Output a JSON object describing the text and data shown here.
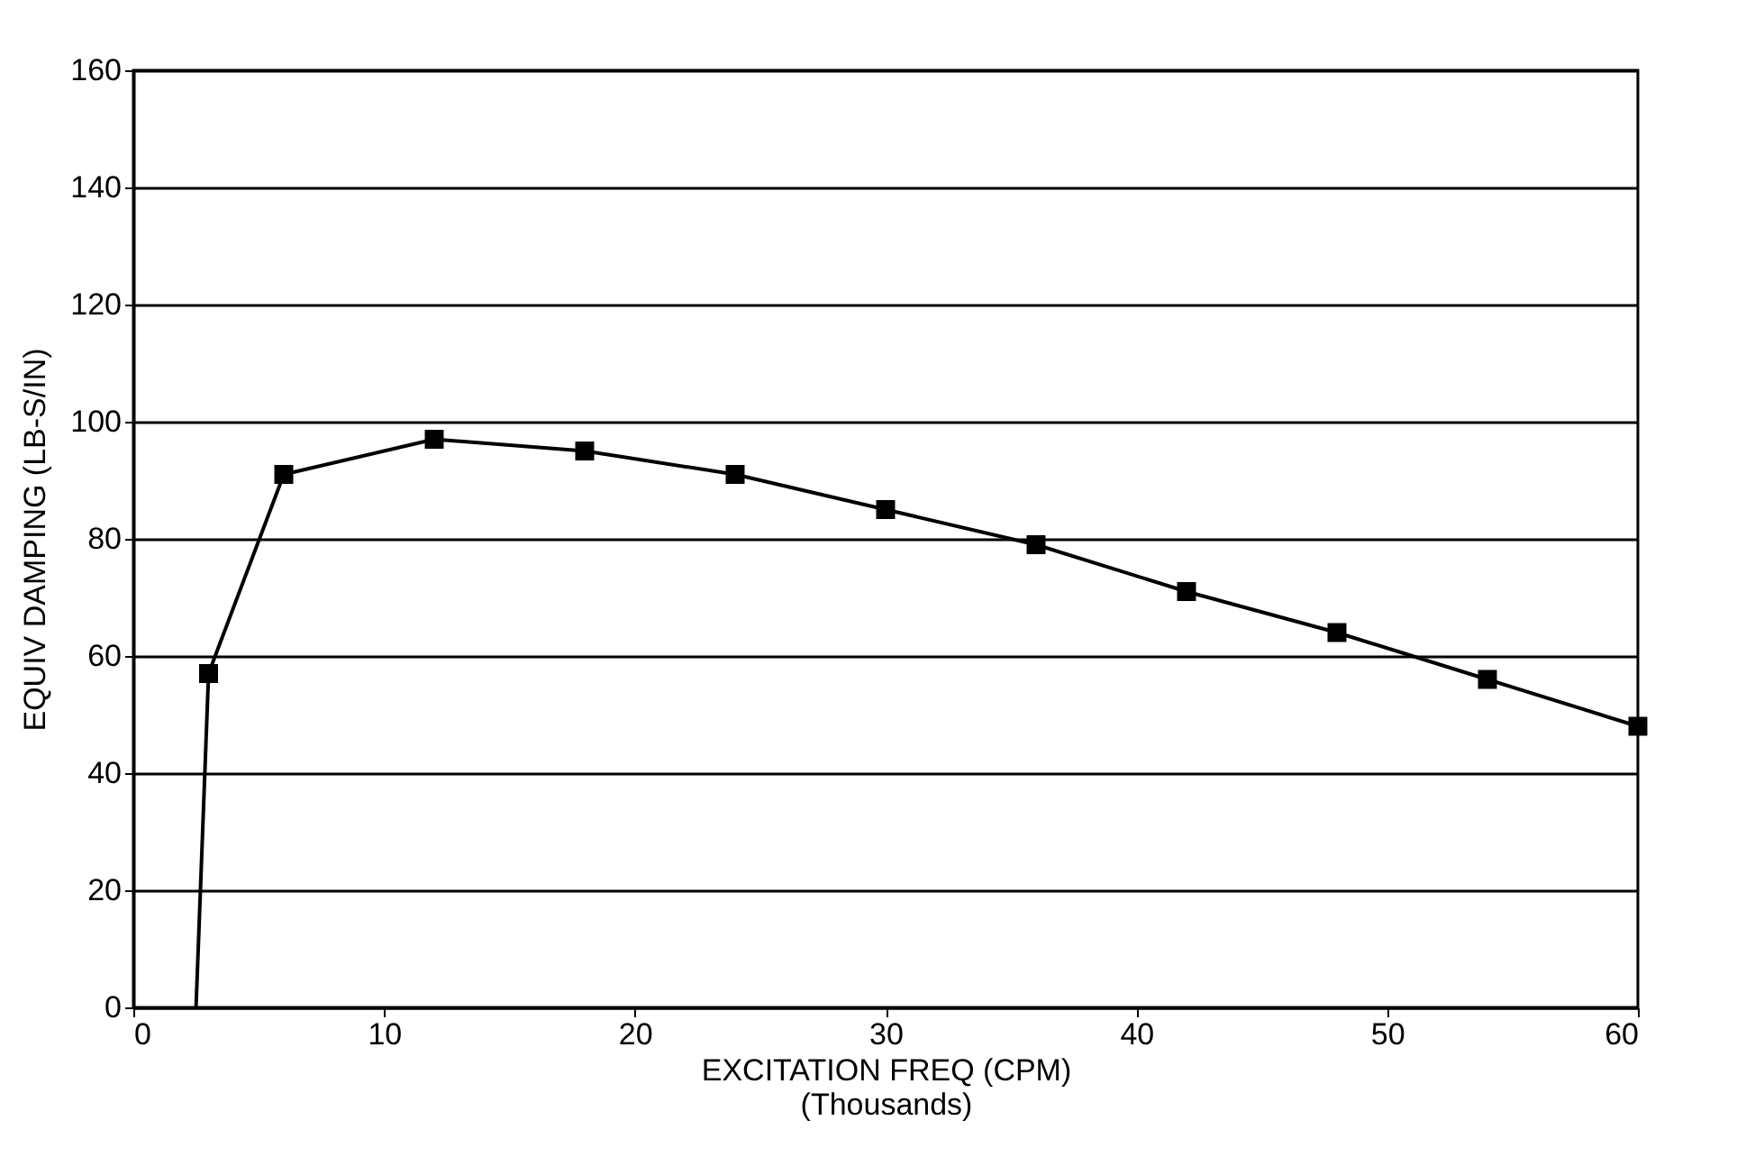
{
  "chart_data": {
    "type": "line",
    "xlabel": [
      "EXCITATION FREQ (CPM)",
      "(Thousands)"
    ],
    "ylabel": "EQUIV DAMPING (LB-S/IN)",
    "series": [
      {
        "x": [
          2.5,
          3
        ],
        "values": [
          0,
          57
        ],
        "color": "#000000"
      },
      {
        "x": [
          3,
          6,
          12,
          18,
          24,
          30,
          36,
          42,
          48,
          54,
          60
        ],
        "values": [
          57,
          91,
          97,
          95,
          91,
          85,
          79,
          71,
          64,
          56,
          48
        ],
        "color": "#000000",
        "marker": "square"
      }
    ],
    "xlim": [
      0,
      60
    ],
    "xticks": [
      0,
      10,
      20,
      30,
      40,
      50,
      60
    ],
    "ylim": [
      0,
      160
    ],
    "yticks": [
      0,
      20,
      40,
      60,
      80,
      100,
      120,
      140,
      160
    ],
    "grid": "y",
    "line_style": "solid"
  }
}
